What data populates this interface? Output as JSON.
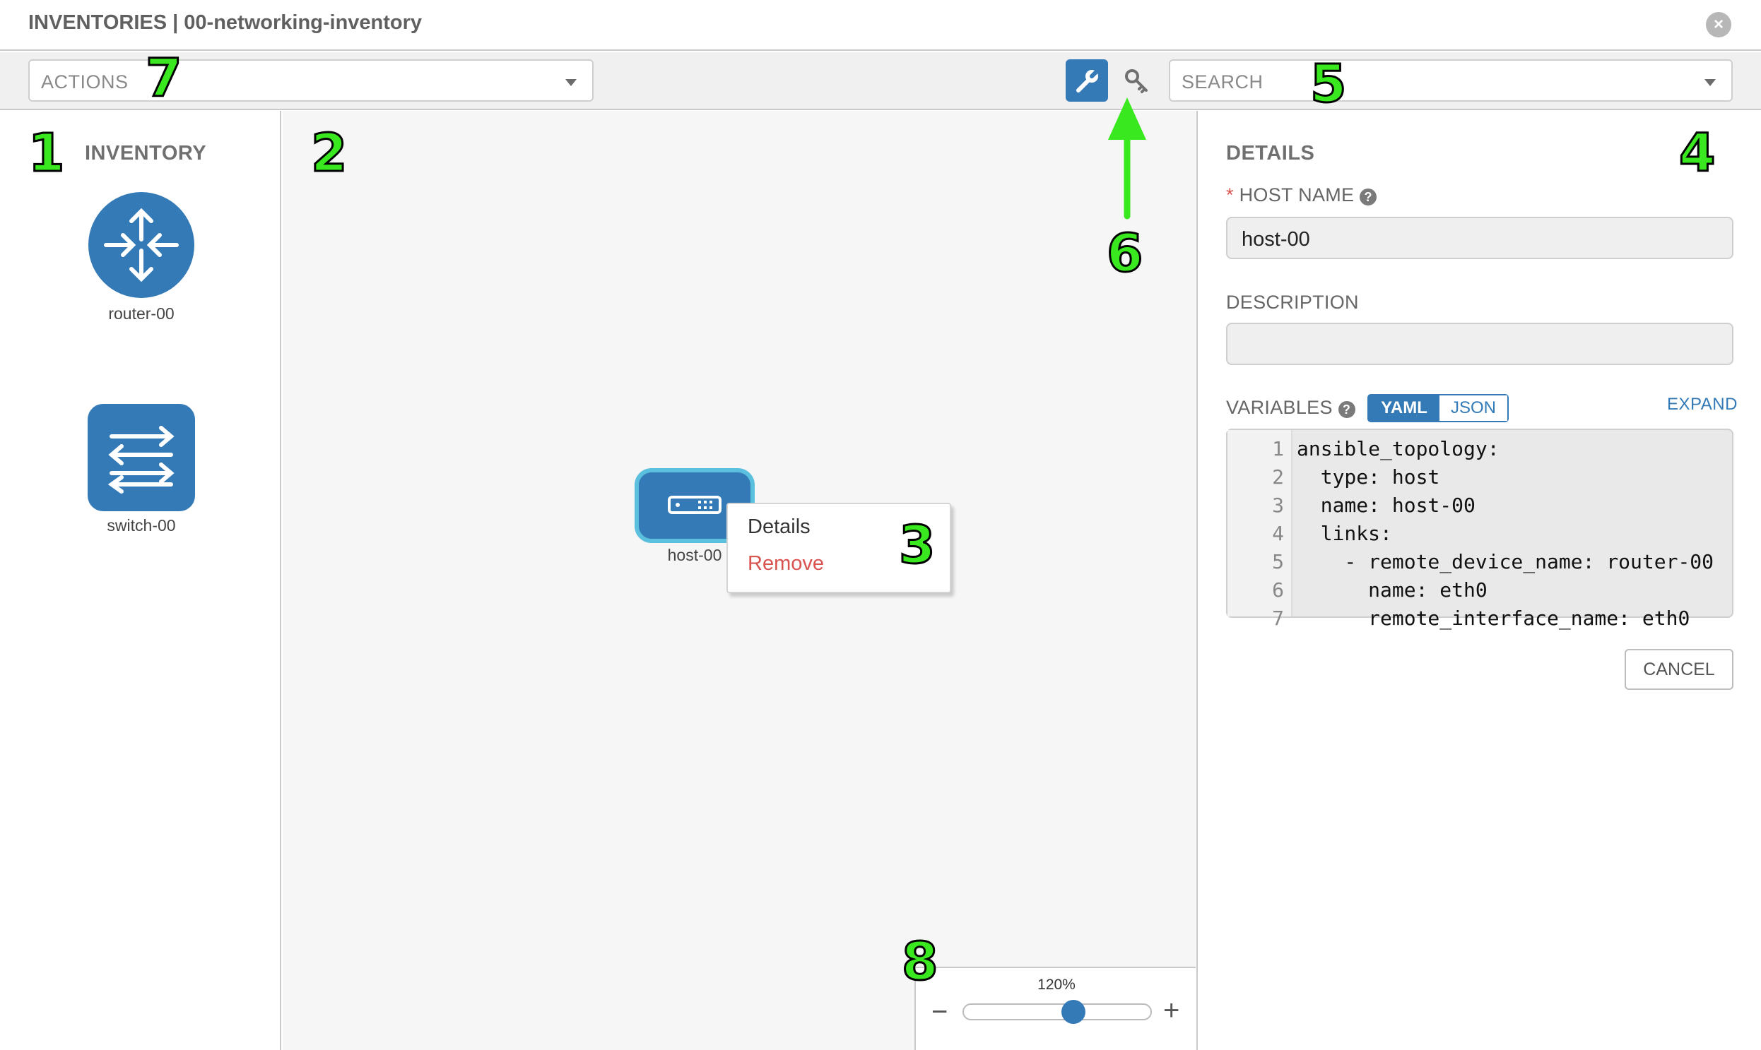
{
  "header": {
    "title": "INVENTORIES | 00-networking-inventory",
    "close_icon": "close-circle-icon"
  },
  "toolbar": {
    "actions_label": "ACTIONS",
    "search_label": "SEARCH",
    "tools": [
      {
        "icon": "wrench-icon",
        "active": true
      },
      {
        "icon": "key-icon",
        "active": false
      }
    ]
  },
  "inventory": {
    "heading": "INVENTORY",
    "devices": [
      {
        "label": "router-00",
        "icon": "router-icon"
      },
      {
        "label": "switch-00",
        "icon": "switch-icon"
      }
    ]
  },
  "canvas": {
    "host": {
      "label": "host-00",
      "icon": "host-icon"
    },
    "context_menu": [
      {
        "label": "Details",
        "color": "#333333"
      },
      {
        "label": "Remove",
        "color": "#d9534f"
      }
    ]
  },
  "details": {
    "heading": "DETAILS",
    "required_marker": "*",
    "host_name_label": "HOST NAME",
    "host_name_value": "host-00",
    "description_label": "DESCRIPTION",
    "description_value": "",
    "variables_label": "VARIABLES",
    "format_options": [
      "YAML",
      "JSON"
    ],
    "selected_format": "YAML",
    "expand_label": "EXPAND",
    "code_lines": [
      {
        "num": "1",
        "text": "ansible_topology:"
      },
      {
        "num": "2",
        "text": "  type: host"
      },
      {
        "num": "3",
        "text": "  name: host-00"
      },
      {
        "num": "4",
        "text": "  links:"
      },
      {
        "num": "5",
        "text": "    - remote_device_name: router-00"
      },
      {
        "num": "6",
        "text": "      name: eth0"
      },
      {
        "num": "7",
        "text": "      remote_interface_name: eth0"
      }
    ],
    "cancel_label": "CANCEL"
  },
  "zoom": {
    "level_label": "120%",
    "minus": "−",
    "plus": "+",
    "slider_fraction": 0.6
  },
  "callouts": [
    "1",
    "2",
    "3",
    "4",
    "5",
    "6",
    "7",
    "8"
  ],
  "colors": {
    "accent": "#337ab7",
    "callout": "#39e81f",
    "danger": "#d9534f",
    "host_outline": "#5bc0de"
  }
}
